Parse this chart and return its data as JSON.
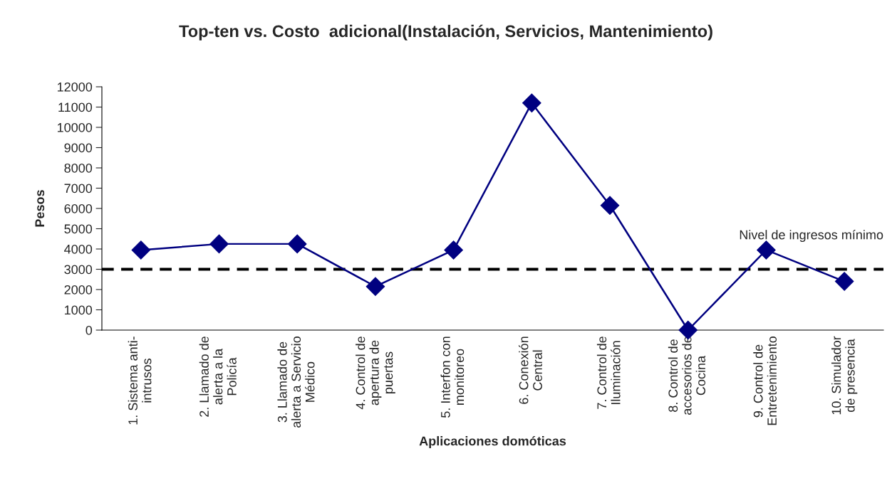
{
  "chart_data": {
    "type": "line",
    "title": "Top-ten vs. Costo  adicional(Instalación, Servicios, Mantenimiento)",
    "xlabel": "Aplicaciones domóticas",
    "ylabel": "Pesos",
    "categories": [
      "1. Sistema anti-\nintrusos",
      "2. Llamado de\nalerta a la\nPolicía",
      "3. Llamado de\nalerta a Servicio\nMédico",
      "4. Control de\napertura de\npuertas",
      "5. Interfon con\nmonitoreo",
      "6. Conexión\nCentral",
      "7. Control de\nIluminación",
      "8. Control de\naccesorios de\nCocina",
      "9. Control de\nEntretenimiento",
      "10. Simulador\nde presencia"
    ],
    "series": [
      {
        "color": "#000080",
        "values": [
          3950,
          4250,
          4250,
          2150,
          3950,
          11200,
          6150,
          0,
          3950,
          2400
        ]
      }
    ],
    "ylim": [
      0,
      12000
    ],
    "yticks": [
      0,
      1000,
      2000,
      3000,
      4000,
      5000,
      6000,
      7000,
      8000,
      9000,
      10000,
      11000,
      12000
    ],
    "ref_lines": [
      {
        "axis": "y",
        "value": 3000,
        "label": "Nivel de ingresos mínimo",
        "color": "#000000",
        "line_style": "dashed"
      }
    ],
    "marker": "diamond",
    "line_style": "solid",
    "grid": false,
    "legend": false
  }
}
